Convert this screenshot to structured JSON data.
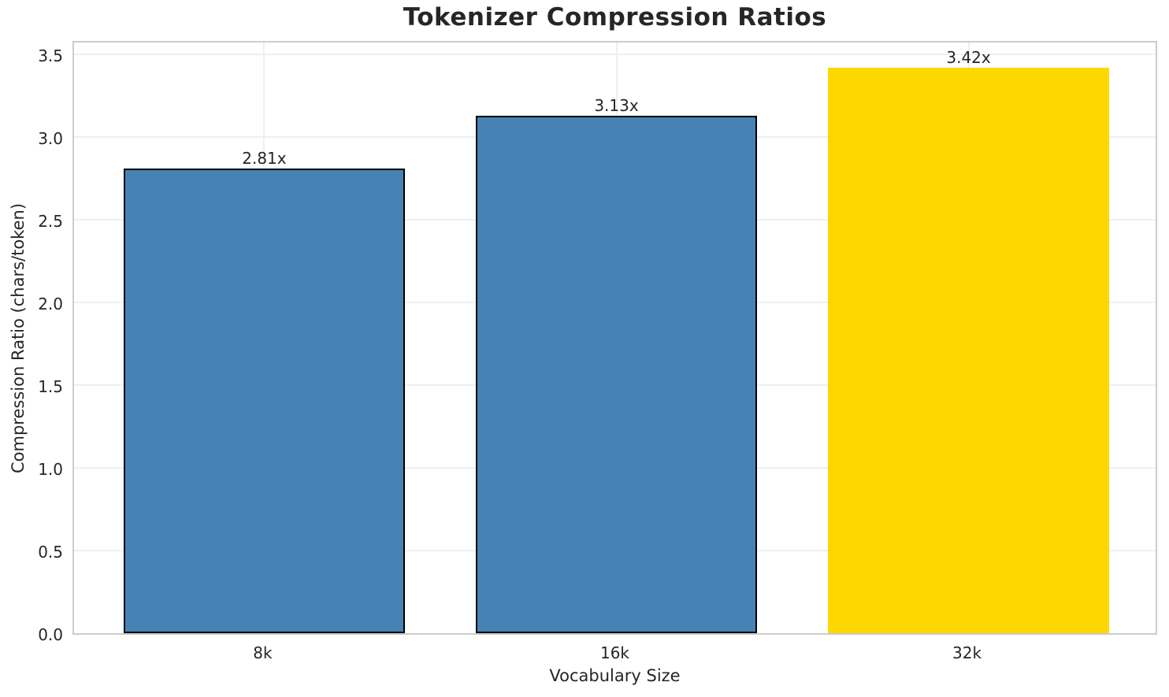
{
  "chart_data": {
    "type": "bar",
    "title": "Tokenizer Compression Ratios",
    "xlabel": "Vocabulary Size",
    "ylabel": "Compression Ratio (chars/token)",
    "categories": [
      "8k",
      "16k",
      "32k"
    ],
    "values": [
      2.81,
      3.13,
      3.42
    ],
    "bar_labels": [
      "2.81x",
      "3.13x",
      "3.42x"
    ],
    "bar_colors": [
      "#4682B4",
      "#4682B4",
      "#FFD700"
    ],
    "bar_edge_colors": [
      "#000000",
      "#000000",
      "#FFD700"
    ],
    "yticks": [
      0.0,
      0.5,
      1.0,
      1.5,
      2.0,
      2.5,
      3.0,
      3.5
    ],
    "ytick_labels": [
      "0.0",
      "0.5",
      "1.0",
      "1.5",
      "2.0",
      "2.5",
      "3.0",
      "3.5"
    ],
    "ylim": [
      0,
      3.59
    ],
    "xlim": [
      -0.54,
      2.54
    ],
    "bar_width_frac": 0.8,
    "grid": "both",
    "legend": "none",
    "colors": {
      "grid": "#EFEFEF",
      "spine": "#CCCCCC",
      "text": "#262626",
      "title": "#262626",
      "background": "#FFFFFF"
    }
  }
}
